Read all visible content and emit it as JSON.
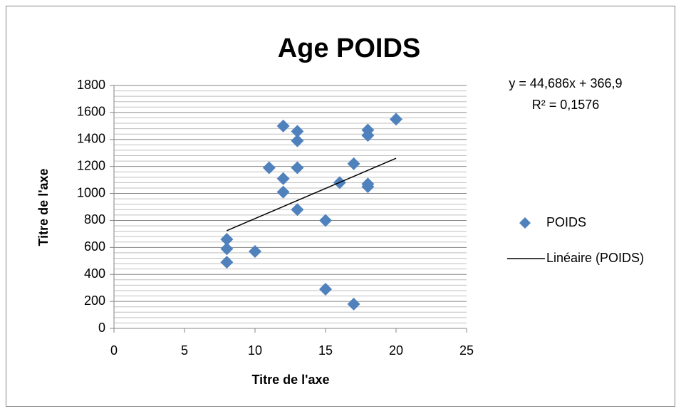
{
  "chart_data": {
    "type": "scatter",
    "title": "Age POIDS",
    "x_label": "Titre de l'axe",
    "y_label": "Titre de l'axe",
    "xlim": [
      0,
      25
    ],
    "xticks": [
      0,
      5,
      10,
      15,
      20,
      25
    ],
    "ylim": [
      0,
      1800
    ],
    "yticks": [
      0,
      200,
      400,
      600,
      800,
      1000,
      1200,
      1400,
      1600,
      1800
    ],
    "grid": true,
    "minor_grid": true,
    "legend": "right",
    "series": [
      {
        "name": "POIDS",
        "color": "#4f81bd",
        "marker": "diamond",
        "x": [
          8,
          8,
          8,
          10,
          11,
          12,
          12,
          12,
          13,
          13,
          13,
          13,
          15,
          15,
          16,
          17,
          17,
          18,
          18,
          18,
          18,
          20
        ],
        "values": [
          660,
          590,
          490,
          570,
          1190,
          1500,
          1110,
          1010,
          1460,
          1390,
          1190,
          880,
          800,
          290,
          1080,
          1220,
          180,
          1470,
          1430,
          1070,
          1050,
          1550
        ]
      },
      {
        "name": "Linéaire (POIDS)",
        "color": "#000000",
        "marker": "line",
        "x": [
          8,
          20
        ],
        "values": [
          724.4,
          1260.6
        ]
      }
    ],
    "annotations": [
      "y = 44,686x + 366,9",
      "R² = 0,1576"
    ]
  }
}
